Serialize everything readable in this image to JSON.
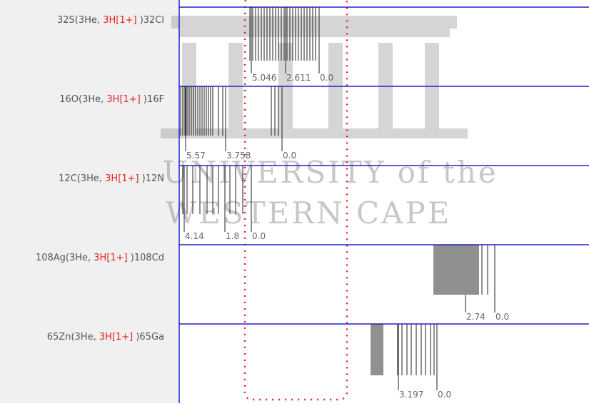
{
  "watermark": {
    "line1": "UNIVERSITY of the",
    "line2": "WESTERN CAPE"
  },
  "rows": [
    {
      "target": "32S(3He, ",
      "ejectile": "3H[1+]",
      "residual": " )32Cl",
      "levels": [
        "5.046",
        "2.611",
        "0.0"
      ]
    },
    {
      "target": "16O(3He, ",
      "ejectile": "3H[1+]",
      "residual": " )16F",
      "levels": [
        "5.57",
        "3.758",
        "0.0"
      ]
    },
    {
      "target": "12C(3He, ",
      "ejectile": "3H[1+]",
      "residual": " )12N",
      "levels": [
        "4.14",
        "1.8",
        "0.0"
      ]
    },
    {
      "target": "108Ag(3He, ",
      "ejectile": "3H[1+]",
      "residual": " )108Cd",
      "levels": [
        "2.74",
        "0.0"
      ]
    },
    {
      "target": "65Zn(3He, ",
      "ejectile": "3H[1+]",
      "residual": " )65Ga",
      "levels": [
        "3.197",
        "0.0"
      ]
    }
  ]
}
